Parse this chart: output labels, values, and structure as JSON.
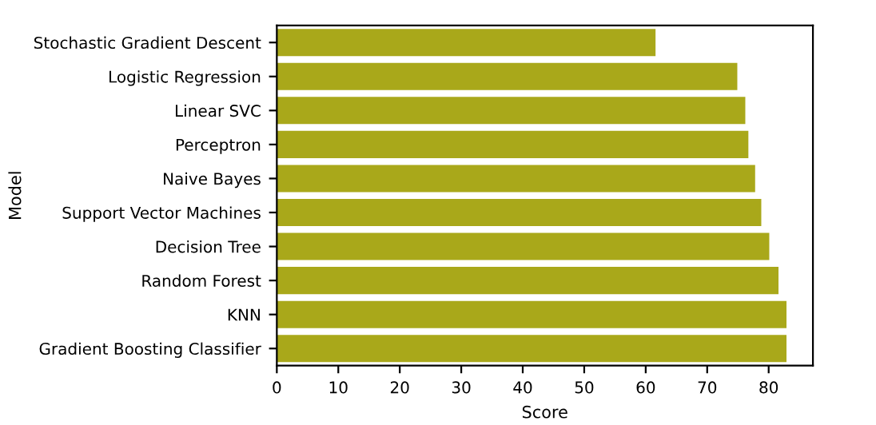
{
  "chart_data": {
    "type": "bar",
    "orientation": "horizontal",
    "xlabel": "Score",
    "ylabel": "Model",
    "categories": [
      "Stochastic Gradient Descent",
      "Logistic Regression",
      "Linear SVC",
      "Perceptron",
      "Naive Bayes",
      "Support Vector Machines",
      "Decision Tree",
      "Random Forest",
      "KNN",
      "Gradient Boosting Classifier"
    ],
    "values": [
      61.6,
      74.9,
      76.2,
      76.7,
      77.8,
      78.8,
      80.1,
      81.6,
      82.9,
      82.9
    ],
    "color": "#a9a81a",
    "xlim": [
      0,
      87.2
    ],
    "xticks": [
      0,
      10,
      20,
      30,
      40,
      50,
      60,
      70,
      80
    ],
    "grid": false
  }
}
